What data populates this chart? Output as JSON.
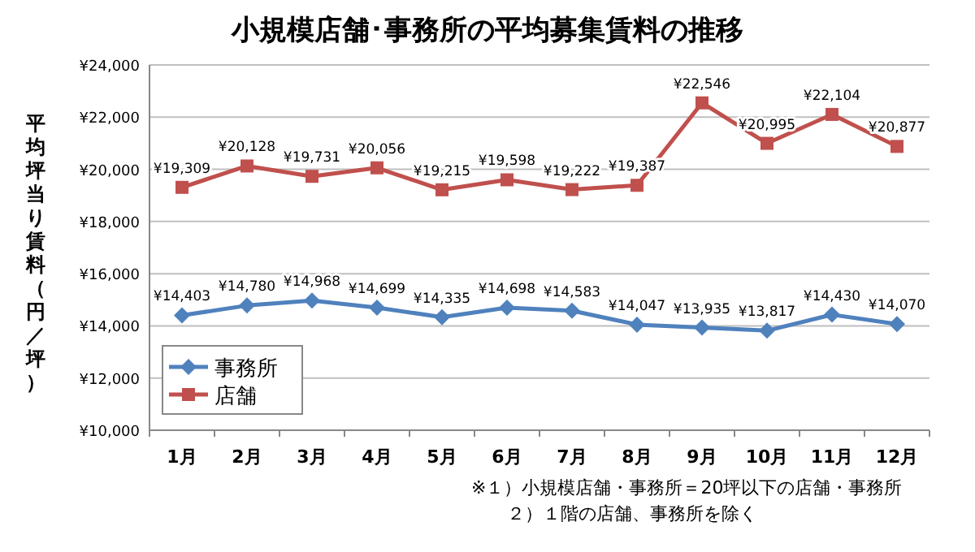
{
  "chart_data": {
    "type": "line",
    "title": "小規模店舗･事務所の平均募集賃料の推移",
    "ylabel": "平均坪当り賃料（円／坪）",
    "categories": [
      "1月",
      "2月",
      "3月",
      "4月",
      "5月",
      "6月",
      "7月",
      "8月",
      "9月",
      "10月",
      "11月",
      "12月"
    ],
    "series": [
      {
        "name": "事務所",
        "color": "#4f81bd",
        "marker": "diamond",
        "values": [
          14403,
          14780,
          14968,
          14699,
          14335,
          14698,
          14583,
          14047,
          13935,
          13817,
          14430,
          14070
        ],
        "value_labels": [
          "¥14,403",
          "¥14,780",
          "¥14,968",
          "¥14,699",
          "¥14,335",
          "¥14,698",
          "¥14,583",
          "¥14,047",
          "¥13,935",
          "¥13,817",
          "¥14,430",
          "¥14,070"
        ]
      },
      {
        "name": "店舗",
        "color": "#c0504d",
        "marker": "square",
        "values": [
          19309,
          20128,
          19731,
          20056,
          19215,
          19598,
          19222,
          19387,
          22546,
          20995,
          22104,
          20877
        ],
        "value_labels": [
          "¥19,309",
          "¥20,128",
          "¥19,731",
          "¥20,056",
          "¥19,215",
          "¥19,598",
          "¥19,222",
          "¥19,387",
          "¥22,546",
          "¥20,995",
          "¥22,104",
          "¥20,877"
        ]
      }
    ],
    "ylim": [
      10000,
      24000
    ],
    "yticks": [
      {
        "value": 10000,
        "label": "¥10,000"
      },
      {
        "value": 12000,
        "label": "¥12,000"
      },
      {
        "value": 14000,
        "label": "¥14,000"
      },
      {
        "value": 16000,
        "label": "¥16,000"
      },
      {
        "value": 18000,
        "label": "¥18,000"
      },
      {
        "value": 20000,
        "label": "¥20,000"
      },
      {
        "value": 22000,
        "label": "¥22,000"
      },
      {
        "value": 24000,
        "label": "¥24,000"
      }
    ],
    "grid": "y",
    "legend": "bottom left",
    "annotations": [
      "※１）小規模店舗・事務所＝20坪以下の店舗・事務所",
      "２）１階の店舗、事務所を除く"
    ]
  }
}
